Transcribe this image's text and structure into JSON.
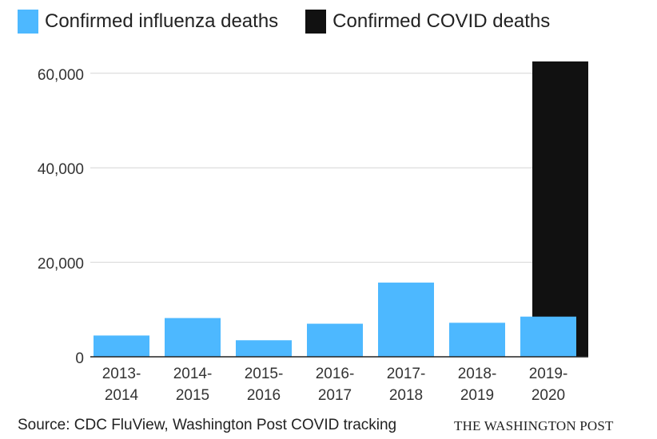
{
  "chart_data": {
    "type": "bar",
    "categories": [
      [
        "2013-",
        "2014"
      ],
      [
        "2014-",
        "2015"
      ],
      [
        "2015-",
        "2016"
      ],
      [
        "2016-",
        "2017"
      ],
      [
        "2017-",
        "2018"
      ],
      [
        "2018-",
        "2019"
      ],
      [
        "2019-",
        "2020"
      ]
    ],
    "series": [
      {
        "name": "Confirmed influenza deaths",
        "color": "#4db8ff",
        "values": [
          4500,
          8200,
          3500,
          7000,
          15700,
          7200,
          8500
        ]
      },
      {
        "name": "Confirmed COVID deaths",
        "color": "#111111",
        "values": [
          null,
          null,
          null,
          null,
          null,
          null,
          62500
        ]
      }
    ],
    "yticks": [
      0,
      20000,
      40000,
      60000
    ],
    "ytick_labels": [
      "0",
      "20,000",
      "40,000",
      "60,000"
    ],
    "ylim": [
      0,
      62500
    ],
    "grid": true,
    "legend_position": "top-left"
  },
  "source": "Source: CDC FluView, Washington Post COVID tracking",
  "brand": "THE WASHINGTON POST"
}
